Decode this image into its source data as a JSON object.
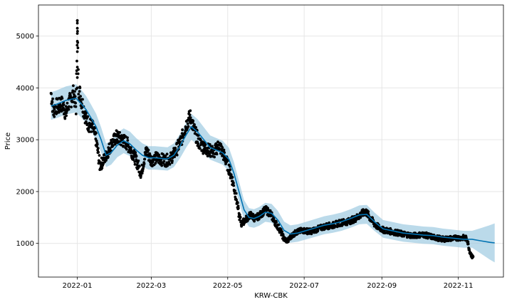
{
  "chart_data": {
    "type": "line",
    "title": "",
    "xlabel": "KRW-CBK",
    "ylabel": "Price",
    "x_range": [
      "2021-12-01",
      "2022-12-07"
    ],
    "ylim": [
      350,
      5600
    ],
    "grid": true,
    "x_ticks": [
      {
        "date": "2022-01-01",
        "label": "2022-01"
      },
      {
        "date": "2022-03-01",
        "label": "2022-03"
      },
      {
        "date": "2022-05-01",
        "label": "2022-05"
      },
      {
        "date": "2022-07-01",
        "label": "2022-07"
      },
      {
        "date": "2022-09-01",
        "label": "2022-09"
      },
      {
        "date": "2022-11-01",
        "label": "2022-11"
      }
    ],
    "y_ticks": [
      1000,
      2000,
      3000,
      4000,
      5000
    ],
    "colors": {
      "observed": "#000000",
      "forecast": "#0072B2",
      "uncertainty": "#9ecae1",
      "grid": "#e6e6e6",
      "axes": "#000000"
    },
    "series": [
      {
        "role": "observed",
        "x": [
          "2021-12-11",
          "2021-12-13",
          "2021-12-15",
          "2021-12-17",
          "2021-12-19",
          "2021-12-21",
          "2021-12-23",
          "2021-12-25",
          "2021-12-27",
          "2021-12-29",
          "2021-12-31",
          "2022-01-01",
          "2022-01-02",
          "2022-01-04",
          "2022-01-06",
          "2022-01-08",
          "2022-01-10",
          "2022-01-13",
          "2022-01-16",
          "2022-01-19",
          "2022-01-22",
          "2022-01-25",
          "2022-01-28",
          "2022-02-01",
          "2022-02-05",
          "2022-02-09",
          "2022-02-13",
          "2022-02-17",
          "2022-02-21",
          "2022-02-25",
          "2022-03-01",
          "2022-03-05",
          "2022-03-09",
          "2022-03-13",
          "2022-03-17",
          "2022-03-21",
          "2022-03-25",
          "2022-03-29",
          "2022-04-01",
          "2022-04-04",
          "2022-04-08",
          "2022-04-12",
          "2022-04-16",
          "2022-04-20",
          "2022-04-24",
          "2022-04-28",
          "2022-05-02",
          "2022-05-05",
          "2022-05-08",
          "2022-05-10",
          "2022-05-12",
          "2022-05-15",
          "2022-05-19",
          "2022-05-23",
          "2022-05-27",
          "2022-05-31",
          "2022-06-04",
          "2022-06-08",
          "2022-06-12",
          "2022-06-15",
          "2022-06-18",
          "2022-06-21",
          "2022-06-25",
          "2022-06-30",
          "2022-07-06",
          "2022-07-12",
          "2022-07-18",
          "2022-07-24",
          "2022-07-30",
          "2022-08-05",
          "2022-08-11",
          "2022-08-15",
          "2022-08-19",
          "2022-08-23",
          "2022-08-27",
          "2022-09-02",
          "2022-09-10",
          "2022-09-18",
          "2022-09-26",
          "2022-10-04",
          "2022-10-12",
          "2022-10-20",
          "2022-10-28",
          "2022-11-05",
          "2022-11-08",
          "2022-11-10",
          "2022-11-12"
        ],
        "y": [
          3900,
          3550,
          3650,
          3620,
          3700,
          3640,
          3500,
          3700,
          3780,
          3900,
          3620,
          5200,
          4000,
          3800,
          3600,
          3400,
          3300,
          3250,
          3000,
          2500,
          2600,
          2750,
          2900,
          3050,
          3000,
          2950,
          2800,
          2600,
          2350,
          2800,
          2600,
          2650,
          2620,
          2600,
          2650,
          2800,
          3000,
          3300,
          3450,
          3200,
          2950,
          2850,
          2800,
          2750,
          2900,
          2700,
          2450,
          2200,
          1850,
          1550,
          1380,
          1450,
          1550,
          1480,
          1550,
          1650,
          1580,
          1400,
          1250,
          1080,
          1050,
          1150,
          1220,
          1250,
          1230,
          1280,
          1330,
          1350,
          1400,
          1420,
          1480,
          1550,
          1620,
          1480,
          1350,
          1260,
          1220,
          1180,
          1150,
          1170,
          1120,
          1080,
          1100,
          1110,
          1090,
          850,
          740
        ]
      },
      {
        "role": "forecast",
        "x": [
          "2021-12-11",
          "2021-12-15",
          "2021-12-19",
          "2021-12-23",
          "2021-12-27",
          "2021-12-31",
          "2022-01-04",
          "2022-01-08",
          "2022-01-12",
          "2022-01-16",
          "2022-01-20",
          "2022-01-24",
          "2022-01-28",
          "2022-02-02",
          "2022-02-07",
          "2022-02-12",
          "2022-02-17",
          "2022-02-22",
          "2022-02-27",
          "2022-03-04",
          "2022-03-09",
          "2022-03-14",
          "2022-03-19",
          "2022-03-24",
          "2022-03-29",
          "2022-04-02",
          "2022-04-07",
          "2022-04-12",
          "2022-04-17",
          "2022-04-22",
          "2022-04-27",
          "2022-05-02",
          "2022-05-06",
          "2022-05-10",
          "2022-05-14",
          "2022-05-18",
          "2022-05-22",
          "2022-05-26",
          "2022-05-31",
          "2022-06-05",
          "2022-06-10",
          "2022-06-15",
          "2022-06-20",
          "2022-06-26",
          "2022-07-03",
          "2022-07-10",
          "2022-07-17",
          "2022-07-24",
          "2022-07-31",
          "2022-08-07",
          "2022-08-14",
          "2022-08-20",
          "2022-08-26",
          "2022-09-02",
          "2022-09-10",
          "2022-09-18",
          "2022-09-26",
          "2022-10-04",
          "2022-10-12",
          "2022-10-20",
          "2022-10-28",
          "2022-11-05",
          "2022-11-12",
          "2022-11-19",
          "2022-11-26",
          "2022-11-30"
        ],
        "y": [
          3650,
          3680,
          3720,
          3760,
          3780,
          3800,
          3700,
          3580,
          3420,
          3250,
          3000,
          2700,
          2750,
          2900,
          2980,
          2920,
          2800,
          2700,
          2650,
          2650,
          2640,
          2630,
          2700,
          2880,
          3100,
          3250,
          3150,
          3000,
          2850,
          2800,
          2750,
          2620,
          2350,
          2000,
          1650,
          1500,
          1480,
          1520,
          1600,
          1580,
          1450,
          1250,
          1180,
          1200,
          1250,
          1300,
          1350,
          1380,
          1420,
          1480,
          1550,
          1560,
          1420,
          1280,
          1240,
          1200,
          1180,
          1160,
          1150,
          1120,
          1100,
          1080,
          1080,
          1050,
          1020,
          1010
        ]
      }
    ]
  }
}
